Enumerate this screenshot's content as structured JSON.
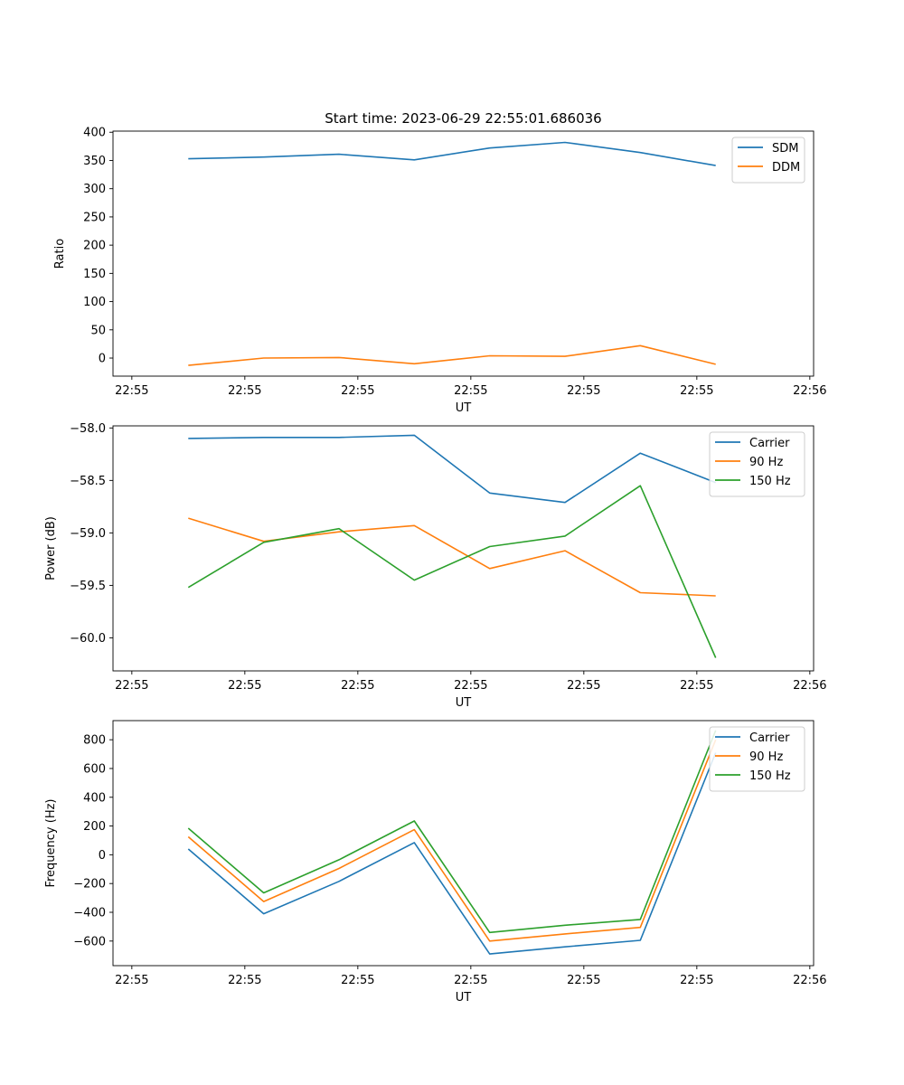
{
  "figure_title": "Start time: 2023-06-29 22:55:01.686036",
  "chart_data": [
    {
      "type": "line",
      "title": "Start time: 2023-06-29 22:55:01.686036",
      "xlabel": "UT",
      "ylabel": "Ratio",
      "x": [
        1,
        2,
        3,
        4,
        5,
        6,
        7,
        8
      ],
      "x_ticks": [
        0.25,
        1.75,
        3.25,
        4.75,
        6.25,
        7.75,
        9.25
      ],
      "x_tick_labels": [
        "22:55",
        "22:55",
        "22:55",
        "22:55",
        "22:55",
        "22:55",
        "22:56"
      ],
      "xlim": [
        0.0,
        9.3
      ],
      "ylim": [
        -32,
        402
      ],
      "y_ticks": [
        0,
        50,
        100,
        150,
        200,
        250,
        300,
        350,
        400
      ],
      "y_tick_labels": [
        "0",
        "50",
        "100",
        "150",
        "200",
        "250",
        "300",
        "350",
        "400"
      ],
      "legend_position": "top-right",
      "series": [
        {
          "name": "SDM",
          "color": "#1f77b4",
          "values": [
            353,
            356,
            361,
            351,
            372,
            382,
            364,
            341
          ]
        },
        {
          "name": "DDM",
          "color": "#ff7f0e",
          "values": [
            -13,
            0,
            1,
            -10,
            4,
            3,
            22,
            -11
          ]
        }
      ]
    },
    {
      "type": "line",
      "xlabel": "UT",
      "ylabel": "Power (dB)",
      "x": [
        1,
        2,
        3,
        4,
        5,
        6,
        7,
        8
      ],
      "x_ticks": [
        0.25,
        1.75,
        3.25,
        4.75,
        6.25,
        7.75,
        9.25
      ],
      "x_tick_labels": [
        "22:55",
        "22:55",
        "22:55",
        "22:55",
        "22:55",
        "22:55",
        "22:56"
      ],
      "xlim": [
        0.0,
        9.3
      ],
      "ylim": [
        -60.315,
        -57.98
      ],
      "y_ticks": [
        -58.0,
        -58.5,
        -59.0,
        -59.5,
        -60.0
      ],
      "y_tick_labels": [
        "−58.0",
        "−58.5",
        "−59.0",
        "−59.5",
        "−60.0"
      ],
      "legend_position": "top-right",
      "series": [
        {
          "name": "Carrier",
          "color": "#1f77b4",
          "values": [
            -58.1,
            -58.09,
            -58.09,
            -58.07,
            -58.62,
            -58.71,
            -58.24,
            -58.52
          ]
        },
        {
          "name": "90 Hz",
          "color": "#ff7f0e",
          "values": [
            -58.86,
            -59.08,
            -58.99,
            -58.93,
            -59.34,
            -59.17,
            -59.57,
            -59.6
          ]
        },
        {
          "name": "150 Hz",
          "color": "#2ca02c",
          "values": [
            -59.52,
            -59.09,
            -58.96,
            -59.45,
            -59.13,
            -59.03,
            -58.55,
            -60.19
          ]
        }
      ]
    },
    {
      "type": "line",
      "xlabel": "UT",
      "ylabel": "Frequency (Hz)",
      "x": [
        1,
        2,
        3,
        4,
        5,
        6,
        7,
        8
      ],
      "x_ticks": [
        0.25,
        1.75,
        3.25,
        4.75,
        6.25,
        7.75,
        9.25
      ],
      "x_tick_labels": [
        "22:55",
        "22:55",
        "22:55",
        "22:55",
        "22:55",
        "22:55",
        "22:56"
      ],
      "xlim": [
        0.0,
        9.3
      ],
      "ylim": [
        -771,
        933
      ],
      "y_ticks": [
        -600,
        -400,
        -200,
        0,
        200,
        400,
        600,
        800
      ],
      "y_tick_labels": [
        "−600",
        "−400",
        "−200",
        "0",
        "200",
        "400",
        "600",
        "800"
      ],
      "legend_position": "top-right",
      "series": [
        {
          "name": "Carrier",
          "color": "#1f77b4",
          "values": [
            40,
            -410,
            -185,
            85,
            -690,
            -640,
            -595,
            710
          ]
        },
        {
          "name": "90 Hz",
          "color": "#ff7f0e",
          "values": [
            125,
            -325,
            -95,
            175,
            -600,
            -550,
            -505,
            800
          ]
        },
        {
          "name": "150 Hz",
          "color": "#2ca02c",
          "values": [
            185,
            -265,
            -35,
            235,
            -540,
            -490,
            -450,
            865
          ]
        }
      ]
    }
  ]
}
